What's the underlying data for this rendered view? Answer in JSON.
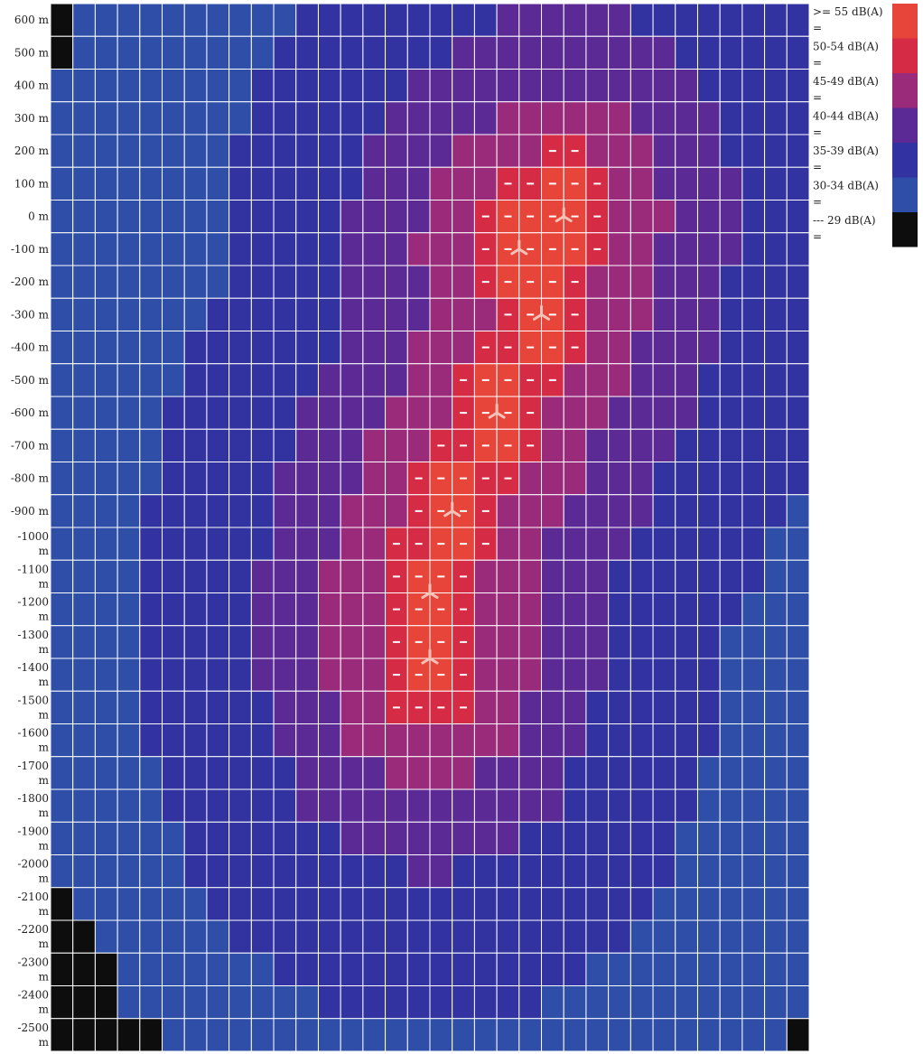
{
  "chart_data": {
    "type": "heatmap",
    "unit": "dB(A)",
    "y_tick_labels": [
      "600 m",
      "500 m",
      "400 m",
      "300 m",
      "200 m",
      "100 m",
      "0 m",
      "-100 m",
      "-200 m",
      "-300 m",
      "-400 m",
      "-500 m",
      "-600 m",
      "-700 m",
      "-800 m",
      "-900 m",
      "-1000 m",
      "-1100 m",
      "-1200 m",
      "-1300 m",
      "-1400 m",
      "-1500 m",
      "-1600 m",
      "-1700 m",
      "-1800 m",
      "-1900 m",
      "-2000 m",
      "-2100 m",
      "-2200 m",
      "-2300 m",
      "-2400 m",
      "-2500 m"
    ],
    "legend": [
      {
        "label": ">= 55 dB(A)",
        "color": "#e8453a",
        "marker": "="
      },
      {
        "label": "50-54 dB(A)",
        "color": "#d62b45",
        "marker": "="
      },
      {
        "label": "45-49 dB(A)",
        "color": "#9a2a7a",
        "marker": "="
      },
      {
        "label": "40-44 dB(A)",
        "color": "#5c2a94",
        "marker": "="
      },
      {
        "label": "35-39 dB(A)",
        "color": "#3232a0",
        "marker": "="
      },
      {
        "label": "30-34 dB(A)",
        "color": "#2e4ea8",
        "marker": "="
      },
      {
        "label": "--- 29 dB(A)",
        "color": "#0d0d0d",
        "marker": "="
      }
    ],
    "turbines_count": 7
  }
}
